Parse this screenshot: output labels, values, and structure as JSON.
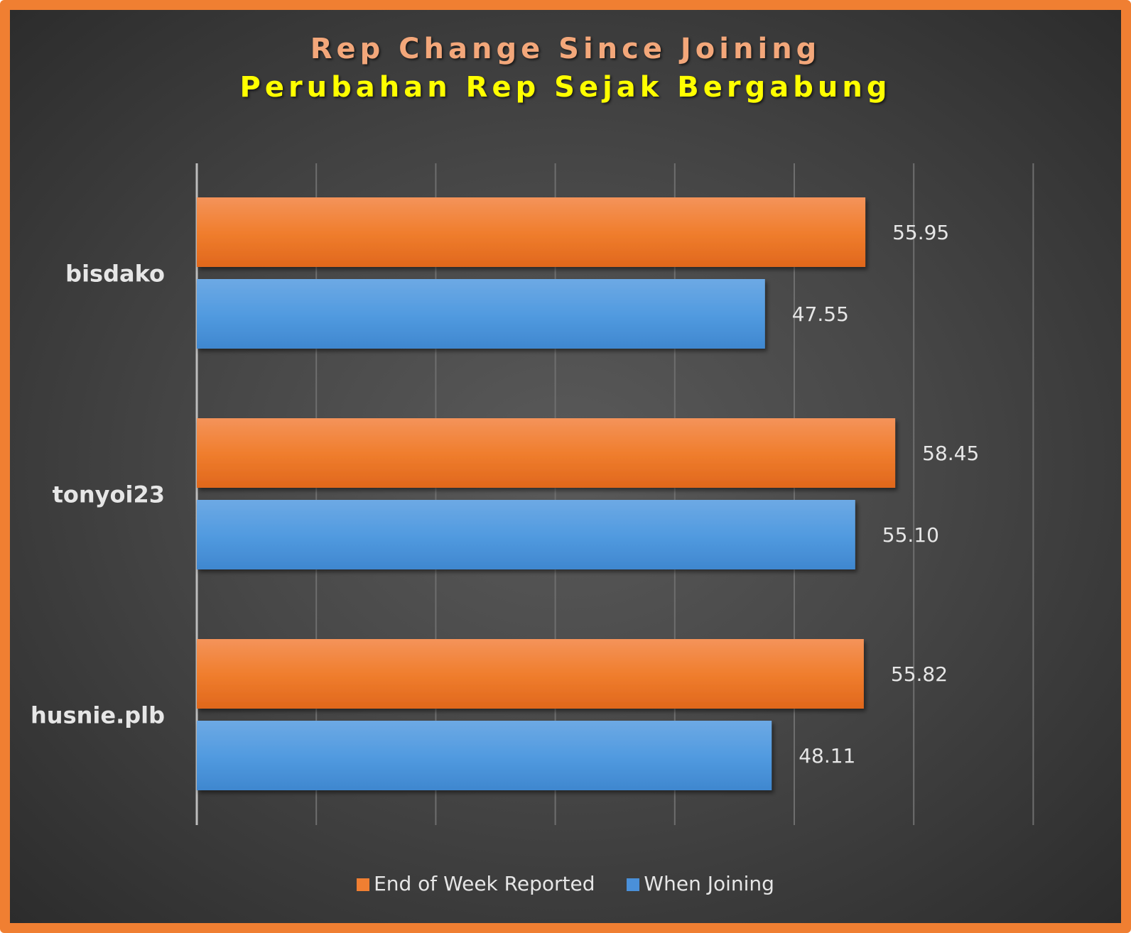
{
  "chart_data": {
    "type": "bar",
    "orientation": "horizontal",
    "title": "Rep Change Since Joining",
    "subtitle": "Perubahan Rep Sejak Bergabung",
    "categories": [
      "bisdako",
      "tonyoi23",
      "husnie.plb"
    ],
    "series": [
      {
        "name": "End of Week Reported",
        "values": [
          55.95,
          58.45,
          55.82
        ],
        "labels": [
          "55.95",
          "58.45",
          "55.82"
        ],
        "color": "#F07F32"
      },
      {
        "name": "When Joining",
        "values": [
          47.55,
          55.1,
          48.11
        ],
        "labels": [
          "47.55",
          "55.10",
          "48.11"
        ],
        "color": "#4A90D9"
      }
    ],
    "xlim": [
      0,
      70
    ],
    "grid": true,
    "legend_position": "bottom",
    "xlabel": "",
    "ylabel": ""
  },
  "colors": {
    "frame": "#F07F32",
    "title": "#F3A77A",
    "subtitle": "#FFFF00"
  }
}
